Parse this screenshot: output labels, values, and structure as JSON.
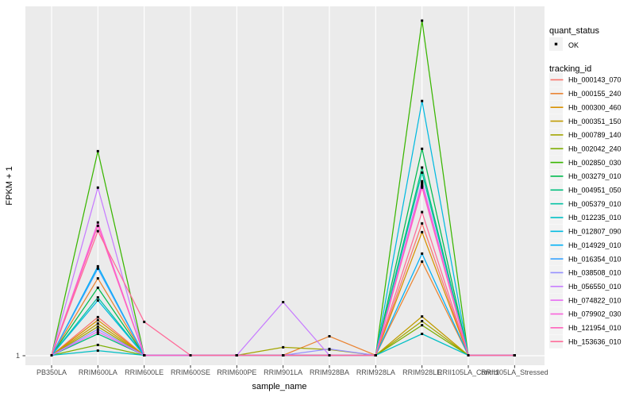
{
  "figure": {
    "background": "#FFFFFF",
    "panel_background": "#EBEBEB",
    "gridline_color": "#FFFFFF",
    "axis_tick_color": "#333333",
    "axis_text_color": "#4D4D4D",
    "axis_title_color": "#000000",
    "point_color": "#000000",
    "legend_key_background": "#F2F2F2"
  },
  "chart_data": {
    "type": "line",
    "title": "",
    "xlabel": "sample_name",
    "ylabel": "FPKM + 1",
    "x_categories": [
      "PB350LA",
      "RRIM600LA",
      "RRIM600LE",
      "RRIM600SE",
      "RRIM600PE",
      "RRIM901LA",
      "RRIM928BA",
      "RRIM928LA",
      "RRIM928LE",
      "RRII105LA_Control",
      "RRII105LA_Stressed"
    ],
    "y_tick_labels": [
      "1"
    ],
    "y_scale_note": "only the value 1 is labeled on the y-axis; 'heights' are fractions of panel height above the y=1 baseline (0 = FPKM+1 of 1, 1 = tallest peak)",
    "grid": "vertical line per category plus horizontal line at y=1",
    "legend_position": "right",
    "legend": {
      "quant_status": {
        "title": "quant_status",
        "entries": [
          {
            "label": "OK",
            "marker": "black-point"
          }
        ]
      },
      "tracking_id": {
        "title": "tracking_id"
      }
    },
    "series": [
      {
        "name": "Hb_000143_070",
        "color": "#F8766D",
        "heights": [
          0,
          0.114,
          0,
          0,
          0,
          0,
          0,
          0,
          0.394,
          0,
          0
        ]
      },
      {
        "name": "Hb_000155_240",
        "color": "#EA8331",
        "heights": [
          0,
          0.23,
          0,
          0,
          0,
          0,
          0.057,
          0,
          0.28,
          0,
          0
        ]
      },
      {
        "name": "Hb_000300_460",
        "color": "#D89000",
        "heights": [
          0,
          0.105,
          0,
          0,
          0,
          0,
          0,
          0,
          0.368,
          0,
          0
        ]
      },
      {
        "name": "Hb_000351_150",
        "color": "#C09B00",
        "heights": [
          0,
          0.095,
          0,
          0,
          0,
          0,
          0,
          0,
          0.116,
          0,
          0
        ]
      },
      {
        "name": "Hb_000789_140",
        "color": "#A3A500",
        "heights": [
          0,
          0.086,
          0,
          0,
          0,
          0.024,
          0.017,
          0,
          0.102,
          0,
          0
        ]
      },
      {
        "name": "Hb_002042_240",
        "color": "#7CAE00",
        "heights": [
          0,
          0.031,
          0,
          0,
          0,
          0,
          0,
          0,
          0.09,
          0,
          0
        ]
      },
      {
        "name": "Hb_002850_030",
        "color": "#39B600",
        "heights": [
          0,
          0.61,
          0,
          0,
          0,
          0,
          0,
          0,
          1,
          0,
          0
        ]
      },
      {
        "name": "Hb_003279_010",
        "color": "#00BB4E",
        "heights": [
          0,
          0.202,
          0,
          0,
          0,
          0,
          0,
          0,
          0.617,
          0,
          0
        ]
      },
      {
        "name": "Hb_004951_050",
        "color": "#00BF7D",
        "heights": [
          0,
          0.064,
          0,
          0,
          0,
          0,
          0,
          0,
          0.561,
          0,
          0
        ]
      },
      {
        "name": "Hb_005379_010",
        "color": "#00C1A3",
        "heights": [
          0,
          0.173,
          0,
          0,
          0,
          0,
          0,
          0,
          0.546,
          0,
          0
        ]
      },
      {
        "name": "Hb_012235_010",
        "color": "#00BFC4",
        "heights": [
          0,
          0.014,
          0,
          0,
          0,
          0,
          0,
          0,
          0.064,
          0,
          0
        ]
      },
      {
        "name": "Hb_012807_090",
        "color": "#00BAE0",
        "heights": [
          0,
          0.164,
          0,
          0,
          0,
          0,
          0,
          0,
          0.76,
          0,
          0
        ]
      },
      {
        "name": "Hb_014929_010",
        "color": "#00B0F6",
        "heights": [
          0,
          0.266,
          0,
          0,
          0,
          0,
          0,
          0,
          0.304,
          0,
          0
        ]
      },
      {
        "name": "Hb_016354_010",
        "color": "#35A2FF",
        "heights": [
          0,
          0.259,
          0,
          0,
          0,
          0,
          0,
          0,
          0.506,
          0,
          0
        ]
      },
      {
        "name": "Hb_038508_010",
        "color": "#9590FF",
        "heights": [
          0,
          0.078,
          0,
          0,
          0,
          0,
          0.019,
          0,
          0.515,
          0,
          0
        ]
      },
      {
        "name": "Hb_056550_010",
        "color": "#C77CFF",
        "heights": [
          0,
          0.501,
          0,
          0,
          0,
          0.159,
          0,
          0,
          0.52,
          0,
          0
        ]
      },
      {
        "name": "Hb_074822_010",
        "color": "#E76BF3",
        "heights": [
          0,
          0.071,
          0,
          0,
          0,
          0,
          0,
          0,
          0.513,
          0,
          0
        ]
      },
      {
        "name": "Hb_079902_030",
        "color": "#FA62DB",
        "heights": [
          0,
          0.397,
          0,
          0,
          0,
          0,
          0,
          0,
          0.508,
          0,
          0
        ]
      },
      {
        "name": "Hb_121954_010",
        "color": "#FF62BC",
        "heights": [
          0,
          0.387,
          0,
          0,
          0,
          0,
          0,
          0,
          0.501,
          0,
          0
        ]
      },
      {
        "name": "Hb_153636_010",
        "color": "#FF6A98",
        "heights": [
          0,
          0.371,
          0.1,
          0,
          0,
          0,
          0,
          0,
          0.428,
          0,
          0
        ]
      }
    ]
  }
}
